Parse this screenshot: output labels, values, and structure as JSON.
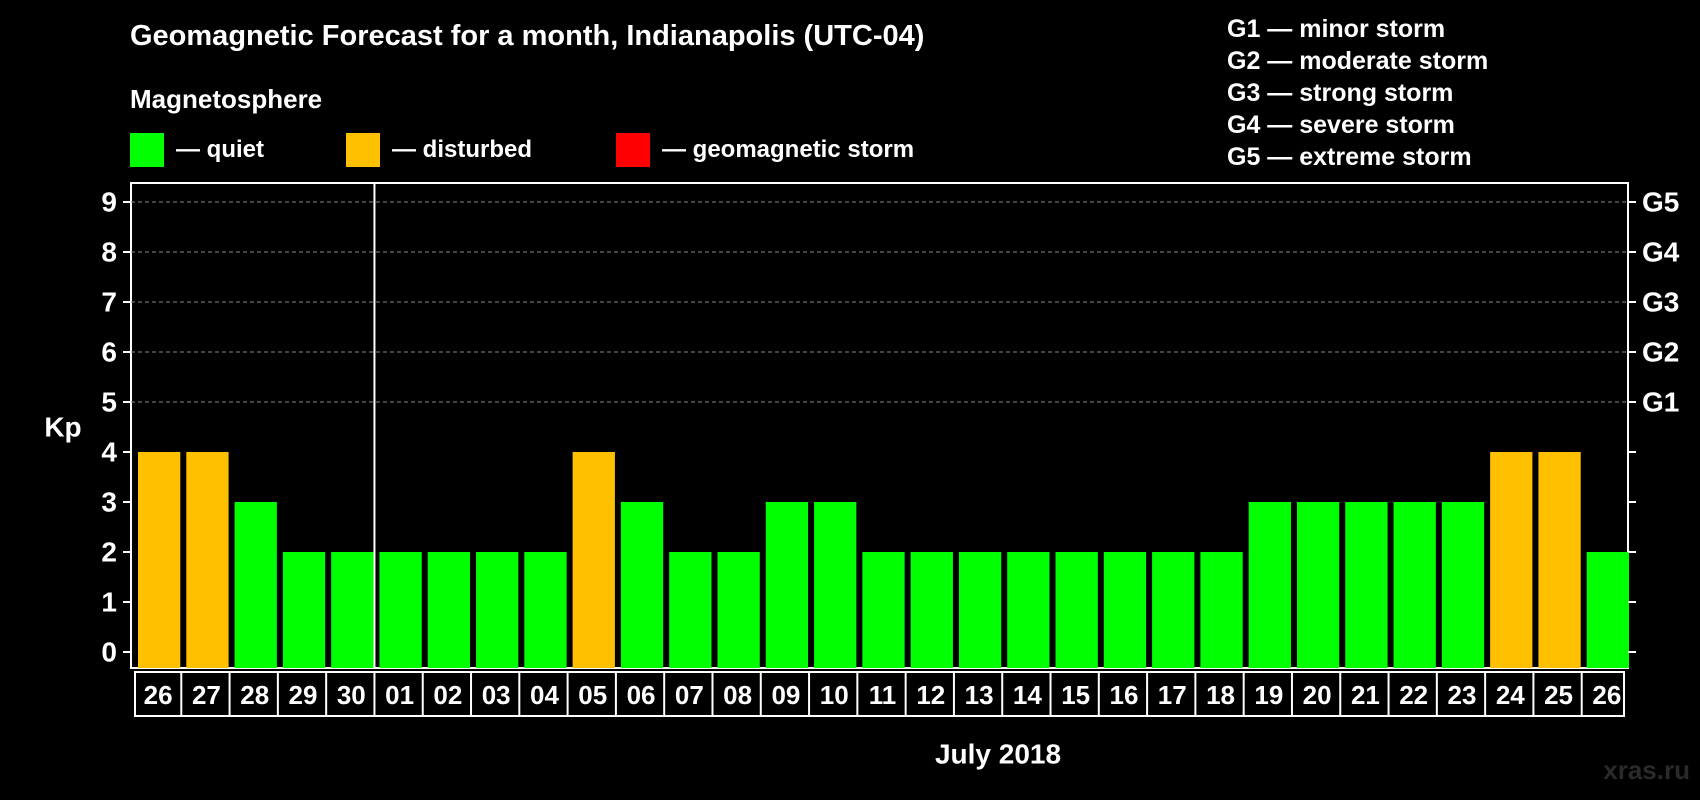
{
  "title": "Geomagnetic Forecast for a month, Indianapolis (UTC-04)",
  "legend": {
    "heading": "Magnetosphere",
    "items": [
      {
        "label": "— quiet",
        "color": "#00ff00"
      },
      {
        "label": "— disturbed",
        "color": "#ffc000"
      },
      {
        "label": "— geomagnetic storm",
        "color": "#ff0000"
      }
    ]
  },
  "storm_scale": [
    "G1 — minor storm",
    "G2 — moderate storm",
    "G3 — strong storm",
    "G4 — severe storm",
    "G5 — extreme storm"
  ],
  "watermark": "xras.ru",
  "chart_data": {
    "type": "bar",
    "ylabel": "Kp",
    "xlabel": "July 2018",
    "ylim": [
      0,
      9
    ],
    "yticks": [
      0,
      1,
      2,
      3,
      4,
      5,
      6,
      7,
      8,
      9
    ],
    "right_axis_labels": [
      {
        "kp": 5,
        "label": "G1"
      },
      {
        "kp": 6,
        "label": "G2"
      },
      {
        "kp": 7,
        "label": "G3"
      },
      {
        "kp": 8,
        "label": "G4"
      },
      {
        "kp": 9,
        "label": "G5"
      }
    ],
    "grid": "dashed horizontal at Kp 5 to 9",
    "month_divider_after": "30",
    "categories": [
      "26",
      "27",
      "28",
      "29",
      "30",
      "01",
      "02",
      "03",
      "04",
      "05",
      "06",
      "07",
      "08",
      "09",
      "10",
      "11",
      "12",
      "13",
      "14",
      "15",
      "16",
      "17",
      "18",
      "19",
      "20",
      "21",
      "22",
      "23",
      "24",
      "25",
      "26"
    ],
    "values": [
      4,
      4,
      3,
      2,
      2,
      2,
      2,
      2,
      2,
      4,
      3,
      2,
      2,
      3,
      3,
      2,
      2,
      2,
      2,
      2,
      2,
      2,
      2,
      3,
      3,
      3,
      3,
      3,
      4,
      4,
      2
    ],
    "color_rule": {
      "quiet": "#00ff00",
      "disturbed": "#ffc000",
      "storm": "#ff0000"
    }
  }
}
